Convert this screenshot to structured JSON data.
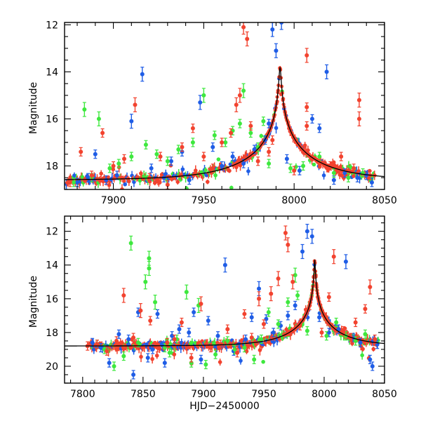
{
  "chart_data": [
    {
      "type": "scatter",
      "panel": "top",
      "xlabel": "",
      "ylabel": "Magnitude",
      "xlim": [
        7873,
        8050
      ],
      "ylim": [
        19.0,
        11.9
      ],
      "y_inverted": true,
      "xticks": [
        7900,
        7950,
        8000,
        8050
      ],
      "yticks": [
        12,
        14,
        16,
        18
      ],
      "grid": false,
      "colors": {
        "blue": "#1f5de6",
        "green": "#3ee83e",
        "red": "#f2432f",
        "model": "#000000"
      },
      "model_curve": {
        "type": "point-lens",
        "t0": 7992.2,
        "tE": 40,
        "u0": 0.012,
        "baseline": 18.6
      },
      "series": [
        {
          "color": "blue",
          "points": [
            [
              7880,
              18.7
            ],
            [
              7886,
              18.5
            ],
            [
              7890,
              17.5
            ],
            [
              7896,
              18.6
            ],
            [
              7902,
              18.4
            ],
            [
              7910,
              16.1
            ],
            [
              7916,
              14.1
            ],
            [
              7921,
              18.1
            ],
            [
              7928,
              18.5
            ],
            [
              7932,
              17.8
            ],
            [
              7938,
              17.4
            ],
            [
              7942,
              18.6
            ],
            [
              7948,
              15.3
            ],
            [
              7955,
              17.2
            ],
            [
              7960,
              18.0
            ],
            [
              7966,
              17.6
            ],
            [
              7972,
              17.9
            ],
            [
              7978,
              17.3
            ],
            [
              7984,
              16.9
            ],
            [
              7986,
              16.2
            ],
            [
              7988,
              12.2
            ],
            [
              7990,
              13.1
            ],
            [
              7993,
              11.9
            ],
            [
              7996,
              17.7
            ],
            [
              8003,
              18.2
            ],
            [
              8010,
              16.0
            ],
            [
              8014,
              16.4
            ],
            [
              8018,
              14.0
            ],
            [
              8022,
              18.6
            ],
            [
              8028,
              18.3
            ],
            [
              8035,
              18.5
            ],
            [
              8040,
              18.4
            ],
            [
              8043,
              18.7
            ]
          ]
        },
        {
          "color": "green",
          "points": [
            [
              7878,
              18.7
            ],
            [
              7884,
              15.6
            ],
            [
              7888,
              18.5
            ],
            [
              7892,
              16.0
            ],
            [
              7898,
              18.1
            ],
            [
              7903,
              17.9
            ],
            [
              7910,
              17.6
            ],
            [
              7918,
              17.1
            ],
            [
              7924,
              17.5
            ],
            [
              7930,
              17.8
            ],
            [
              7936,
              17.3
            ],
            [
              7944,
              17.0
            ],
            [
              7950,
              15.0
            ],
            [
              7956,
              16.7
            ],
            [
              7962,
              17.0
            ],
            [
              7966,
              16.5
            ],
            [
              7970,
              16.2
            ],
            [
              7972,
              14.8
            ],
            [
              7976,
              16.6
            ],
            [
              7980,
              17.2
            ],
            [
              7983,
              16.1
            ],
            [
              7986,
              17.9
            ],
            [
              7998,
              18.1
            ],
            [
              8005,
              18.0
            ],
            [
              8014,
              17.6
            ],
            [
              8022,
              18.3
            ],
            [
              8030,
              18.5
            ],
            [
              8038,
              18.3
            ]
          ]
        },
        {
          "color": "red",
          "points": [
            [
              7876,
              18.7
            ],
            [
              7882,
              17.4
            ],
            [
              7888,
              18.4
            ],
            [
              7894,
              16.6
            ],
            [
              7900,
              18.0
            ],
            [
              7906,
              17.7
            ],
            [
              7912,
              15.4
            ],
            [
              7920,
              18.5
            ],
            [
              7926,
              17.6
            ],
            [
              7930,
              18.8
            ],
            [
              7938,
              17.2
            ],
            [
              7944,
              16.4
            ],
            [
              7950,
              17.6
            ],
            [
              7955,
              18.1
            ],
            [
              7960,
              17.0
            ],
            [
              7965,
              16.6
            ],
            [
              7968,
              15.4
            ],
            [
              7970,
              15.0
            ],
            [
              7972,
              12.1
            ],
            [
              7974,
              12.6
            ],
            [
              7976,
              16.3
            ],
            [
              7980,
              17.8
            ],
            [
              7986,
              17.4
            ],
            [
              7988,
              16.9
            ],
            [
              8000,
              18.2
            ],
            [
              8007,
              13.3
            ],
            [
              8007,
              15.5
            ],
            [
              8007,
              16.3
            ],
            [
              8014,
              17.9
            ],
            [
              8020,
              18.0
            ],
            [
              8026,
              17.6
            ],
            [
              8033,
              18.1
            ],
            [
              8036,
              15.2
            ],
            [
              8036,
              16.0
            ],
            [
              8042,
              18.4
            ]
          ]
        }
      ]
    },
    {
      "type": "scatter",
      "panel": "bottom",
      "xlabel": "HJD−2450000",
      "ylabel": "Magnitude",
      "xlim": [
        7785,
        8050
      ],
      "ylim": [
        21.0,
        11.1
      ],
      "y_inverted": true,
      "xticks": [
        7800,
        7850,
        7900,
        7950,
        8000,
        8050
      ],
      "yticks": [
        12,
        14,
        16,
        18,
        20
      ],
      "grid": false,
      "colors": {
        "blue": "#1f5de6",
        "green": "#3ee83e",
        "red": "#f2432f",
        "model": "#000000"
      },
      "model_curve": {
        "type": "point-lens",
        "t0": 7992.2,
        "tE": 40,
        "u0": 0.009,
        "baseline": 18.8
      },
      "series": [
        {
          "color": "blue",
          "points": [
            [
              7808,
              18.6
            ],
            [
              7815,
              18.9
            ],
            [
              7822,
              19.8
            ],
            [
              7830,
              18.1
            ],
            [
              7838,
              18.4
            ],
            [
              7842,
              20.5
            ],
            [
              7846,
              16.8
            ],
            [
              7854,
              19.5
            ],
            [
              7858,
              19.0
            ],
            [
              7862,
              16.9
            ],
            [
              7868,
              19.8
            ],
            [
              7874,
              18.2
            ],
            [
              7880,
              17.8
            ],
            [
              7888,
              18.0
            ],
            [
              7892,
              16.8
            ],
            [
              7898,
              19.6
            ],
            [
              7904,
              17.3
            ],
            [
              7912,
              18.2
            ],
            [
              7918,
              14.0
            ],
            [
              7925,
              19.1
            ],
            [
              7935,
              18.4
            ],
            [
              7940,
              17.1
            ],
            [
              7946,
              15.4
            ],
            [
              7952,
              17.2
            ],
            [
              7958,
              18.0
            ],
            [
              7964,
              17.6
            ],
            [
              7970,
              17.0
            ],
            [
              7976,
              16.4
            ],
            [
              7982,
              13.2
            ],
            [
              7986,
              12.0
            ],
            [
              7990,
              12.3
            ],
            [
              7996,
              17.1
            ],
            [
              8004,
              18.0
            ],
            [
              8012,
              17.8
            ],
            [
              8018,
              13.8
            ],
            [
              8024,
              18.3
            ],
            [
              8030,
              18.6
            ],
            [
              8038,
              19.6
            ],
            [
              8040,
              20.0
            ],
            [
              8044,
              18.7
            ]
          ]
        },
        {
          "color": "green",
          "points": [
            [
              7812,
              18.7
            ],
            [
              7818,
              19.0
            ],
            [
              7826,
              20.0
            ],
            [
              7834,
              19.4
            ],
            [
              7840,
              12.7
            ],
            [
              7846,
              18.6
            ],
            [
              7852,
              15.0
            ],
            [
              7855,
              13.6
            ],
            [
              7855,
              14.2
            ],
            [
              7860,
              16.2
            ],
            [
              7868,
              18.9
            ],
            [
              7872,
              19.2
            ],
            [
              7878,
              18.4
            ],
            [
              7886,
              15.6
            ],
            [
              7890,
              19.8
            ],
            [
              7896,
              16.4
            ],
            [
              7902,
              19.9
            ],
            [
              7910,
              19.3
            ],
            [
              7920,
              18.5
            ],
            [
              7926,
              19.0
            ],
            [
              7934,
              18.9
            ],
            [
              7942,
              19.6
            ],
            [
              7948,
              18.4
            ],
            [
              7954,
              16.8
            ],
            [
              7962,
              17.5
            ],
            [
              7970,
              16.2
            ],
            [
              7976,
              14.6
            ],
            [
              7978,
              15.8
            ],
            [
              7986,
              17.9
            ],
            [
              8002,
              18.2
            ],
            [
              8010,
              17.4
            ],
            [
              8018,
              18.2
            ],
            [
              8026,
              18.5
            ],
            [
              8034,
              18.1
            ]
          ]
        },
        {
          "color": "red",
          "points": [
            [
              7804,
              18.8
            ],
            [
              7812,
              18.7
            ],
            [
              7820,
              19.1
            ],
            [
              7828,
              18.5
            ],
            [
              7834,
              15.8
            ],
            [
              7842,
              18.3
            ],
            [
              7848,
              16.7
            ],
            [
              7856,
              17.3
            ],
            [
              7862,
              18.9
            ],
            [
              7870,
              18.6
            ],
            [
              7876,
              18.4
            ],
            [
              7882,
              17.4
            ],
            [
              7890,
              19.5
            ],
            [
              7898,
              16.3
            ],
            [
              7906,
              18.9
            ],
            [
              7914,
              18.7
            ],
            [
              7920,
              17.8
            ],
            [
              7928,
              19.2
            ],
            [
              7934,
              16.9
            ],
            [
              7940,
              18.3
            ],
            [
              7946,
              16.0
            ],
            [
              7950,
              17.5
            ],
            [
              7956,
              15.7
            ],
            [
              7962,
              14.8
            ],
            [
              7968,
              12.1
            ],
            [
              7970,
              12.8
            ],
            [
              7974,
              15.0
            ],
            [
              7980,
              17.6
            ],
            [
              7988,
              16.4
            ],
            [
              7998,
              18.0
            ],
            [
              8004,
              15.9
            ],
            [
              8008,
              13.5
            ],
            [
              8016,
              17.9
            ],
            [
              8022,
              18.3
            ],
            [
              8026,
              17.4
            ],
            [
              8034,
              16.6
            ],
            [
              8038,
              15.3
            ],
            [
              8042,
              18.4
            ]
          ]
        }
      ]
    }
  ]
}
